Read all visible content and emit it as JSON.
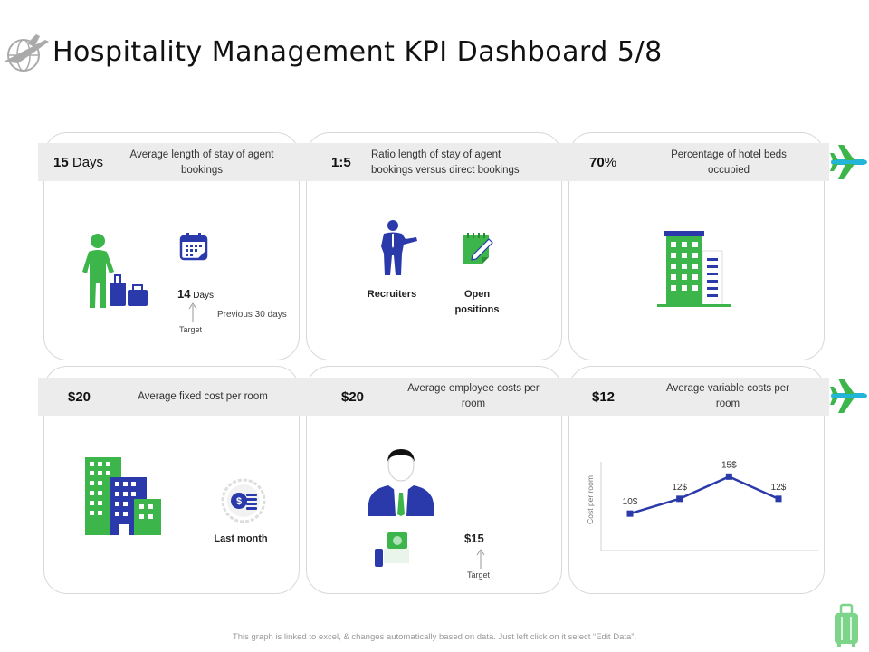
{
  "title": "Hospitality Management KPI Dashboard 5/8",
  "colors": {
    "green": "#3cb54a",
    "blue": "#2b3aab",
    "band": "#ececec",
    "plane": "#22b5d8"
  },
  "kpis": [
    {
      "value": "15",
      "unit": " Days",
      "desc": "Average length of stay of agent bookings"
    },
    {
      "value": "1:5",
      "unit": "",
      "desc": "Ratio length of stay of agent bookings versus direct bookings"
    },
    {
      "value": "70",
      "unit": "%",
      "desc": "Percentage of hotel beds occupied"
    },
    {
      "value": "$20",
      "unit": "",
      "desc": "Average fixed cost per room"
    },
    {
      "value": "$20",
      "unit": "",
      "desc": "Average employee costs per room"
    },
    {
      "value": "$12",
      "unit": "",
      "desc": "Average variable costs per room"
    }
  ],
  "card1": {
    "days_value": "14",
    "days_unit": " Days",
    "previous": "Previous 30 days",
    "target": "Target"
  },
  "card2": {
    "recruiters": "Recruiters",
    "open_positions": "Open positions"
  },
  "card4": {
    "last_month": "Last month"
  },
  "card5": {
    "target_value": "$15",
    "target": "Target"
  },
  "chart_data": {
    "type": "line",
    "ylabel": "Cost per room",
    "categories": [
      "1",
      "2",
      "3",
      "4"
    ],
    "values": [
      10,
      12,
      15,
      12
    ],
    "labels": [
      "10$",
      "12$",
      "15$",
      "12$"
    ],
    "ylim": [
      5,
      17
    ],
    "grid": false
  },
  "footer": "This graph is linked to excel, & changes automatically based on data. Just left click on it select “Edit Data”."
}
